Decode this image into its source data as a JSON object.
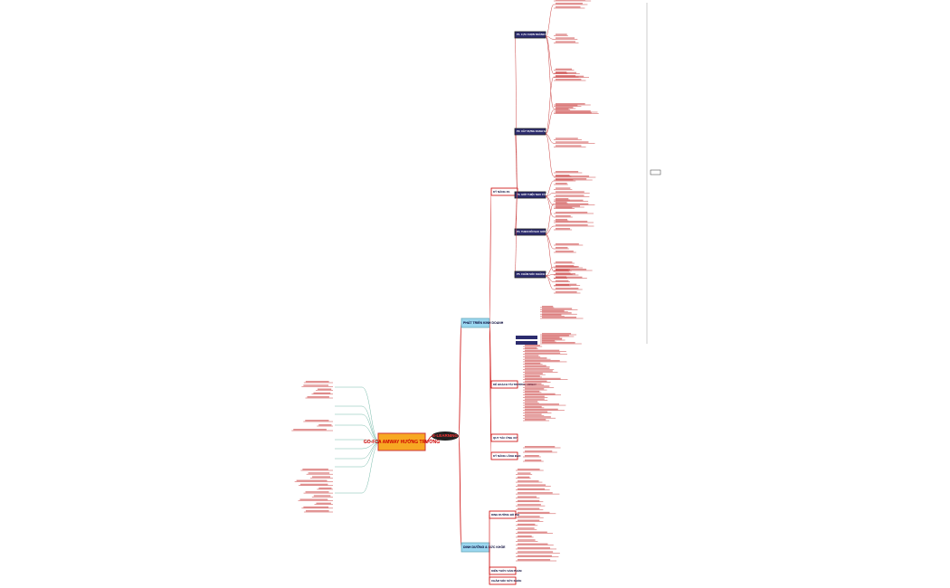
{
  "root": {
    "label": "GO-FCA AMWAY HƯỚNG TRƯỜNG"
  },
  "hub": {
    "label": "E-LEARNING"
  },
  "branches": [
    {
      "label": "PHÁT TRIỂN KINH DOANH"
    },
    {
      "label": "DINH DƯỠNG & SỨC KHỎE"
    }
  ],
  "topics": [
    {
      "label": "KỸ NĂNG 3S"
    },
    {
      "label": "KẾ HOẠCH TÀI TRƯỜNG AMWAY"
    },
    {
      "label": "QUY TẮC ỨNG XỬ"
    },
    {
      "label": "KỸ NĂNG LÃNH ĐẠO"
    },
    {
      "label": "DINH DƯỠNG BỔ PHI"
    },
    {
      "label": "KIẾN THỨC SẢN PHẨM"
    },
    {
      "label": "CHĂM SÓC SỨC KHỎE"
    }
  ],
  "steps": [
    {
      "label": "P1. LỰA CHỌN NGÀNH KINH DOANH"
    },
    {
      "label": "P2. XÂY DỰNG DANH SÁCH"
    },
    {
      "label": "P3. GIỚI THIỆU NHU CẦU"
    },
    {
      "label": "P4. THEO DÕI SAU GIỚI THIỆU"
    },
    {
      "label": "P5. CHĂM SÓC KHÁCH HÀNG"
    }
  ]
}
